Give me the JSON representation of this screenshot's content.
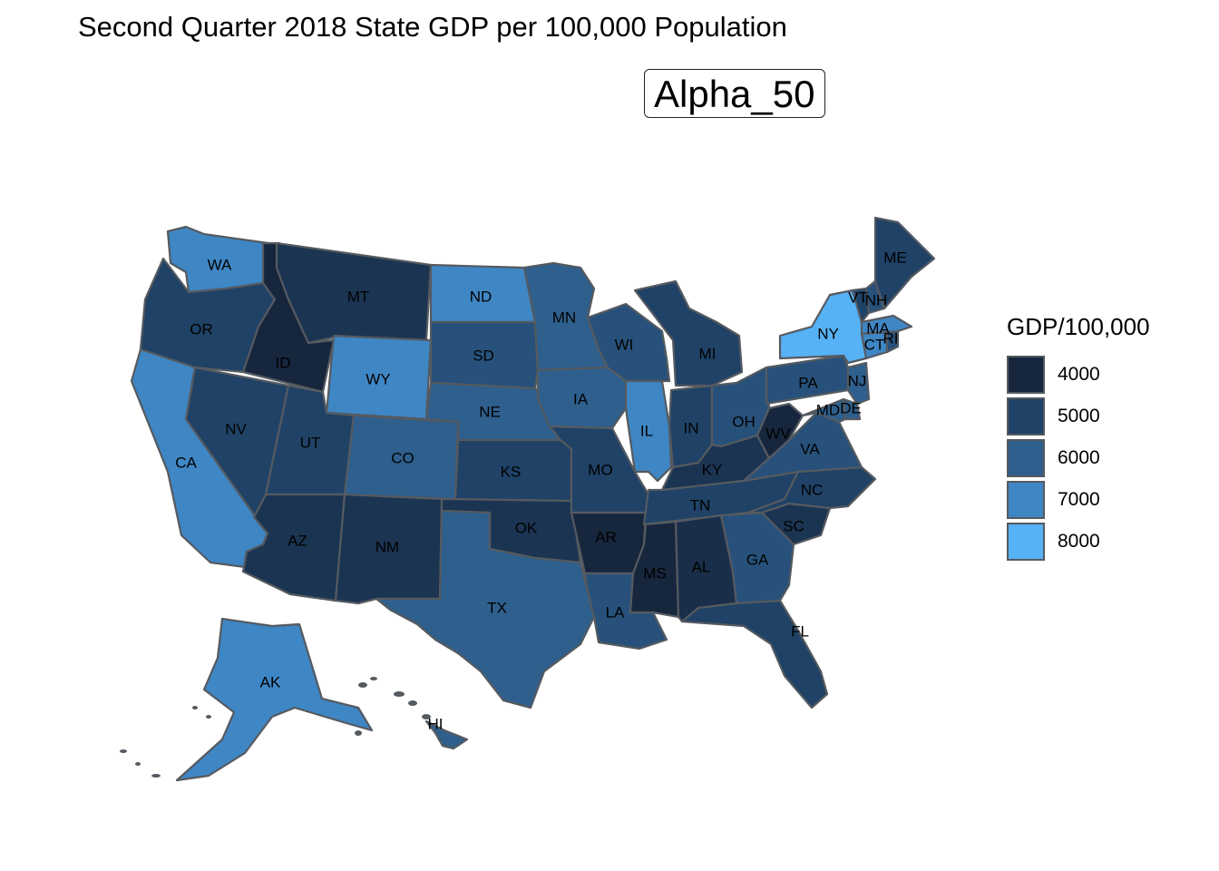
{
  "title": "Second Quarter 2018 State GDP per 100,000 Population",
  "subtitle": "Alpha_50",
  "legend": {
    "title": "GDP/100,000",
    "items": [
      {
        "label": "4000",
        "color": "#16263d"
      },
      {
        "label": "5000",
        "color": "#1f4266"
      },
      {
        "label": "6000",
        "color": "#2e5f8d"
      },
      {
        "label": "7000",
        "color": "#3f86c4"
      },
      {
        "label": "8000",
        "color": "#56b1f5"
      }
    ]
  },
  "states": [
    {
      "abbr": "WA",
      "value": 7000
    },
    {
      "abbr": "OR",
      "value": 5000
    },
    {
      "abbr": "CA",
      "value": 7000
    },
    {
      "abbr": "ID",
      "value": 4000
    },
    {
      "abbr": "NV",
      "value": 5000
    },
    {
      "abbr": "MT",
      "value": 4500
    },
    {
      "abbr": "WY",
      "value": 7000
    },
    {
      "abbr": "UT",
      "value": 5000
    },
    {
      "abbr": "AZ",
      "value": 4500
    },
    {
      "abbr": "CO",
      "value": 6000
    },
    {
      "abbr": "NM",
      "value": 4500
    },
    {
      "abbr": "ND",
      "value": 7000
    },
    {
      "abbr": "SD",
      "value": 5500
    },
    {
      "abbr": "NE",
      "value": 6000
    },
    {
      "abbr": "KS",
      "value": 5000
    },
    {
      "abbr": "OK",
      "value": 4500
    },
    {
      "abbr": "TX",
      "value": 6000
    },
    {
      "abbr": "MN",
      "value": 6000
    },
    {
      "abbr": "IA",
      "value": 6000
    },
    {
      "abbr": "MO",
      "value": 5000
    },
    {
      "abbr": "AR",
      "value": 4000
    },
    {
      "abbr": "LA",
      "value": 5500
    },
    {
      "abbr": "WI",
      "value": 5500
    },
    {
      "abbr": "IL",
      "value": 7000
    },
    {
      "abbr": "MI",
      "value": 5000
    },
    {
      "abbr": "IN",
      "value": 5000
    },
    {
      "abbr": "OH",
      "value": 5500
    },
    {
      "abbr": "KY",
      "value": 4500
    },
    {
      "abbr": "TN",
      "value": 5000
    },
    {
      "abbr": "MS",
      "value": 3800
    },
    {
      "abbr": "AL",
      "value": 4300
    },
    {
      "abbr": "GA",
      "value": 5500
    },
    {
      "abbr": "FL",
      "value": 5000
    },
    {
      "abbr": "SC",
      "value": 4500
    },
    {
      "abbr": "NC",
      "value": 5000
    },
    {
      "abbr": "VA",
      "value": 5500
    },
    {
      "abbr": "WV",
      "value": 4000
    },
    {
      "abbr": "PA",
      "value": 5500
    },
    {
      "abbr": "NY",
      "value": 8000
    },
    {
      "abbr": "NJ",
      "value": 6000
    },
    {
      "abbr": "DE",
      "value": 6000
    },
    {
      "abbr": "MD",
      "value": 6000
    },
    {
      "abbr": "CT",
      "value": 7000
    },
    {
      "abbr": "RI",
      "value": 5500
    },
    {
      "abbr": "MA",
      "value": 7000
    },
    {
      "abbr": "VT",
      "value": 5000
    },
    {
      "abbr": "NH",
      "value": 5500
    },
    {
      "abbr": "ME",
      "value": 5000
    },
    {
      "abbr": "AK",
      "value": 7000
    },
    {
      "abbr": "HI",
      "value": 6000
    }
  ]
}
